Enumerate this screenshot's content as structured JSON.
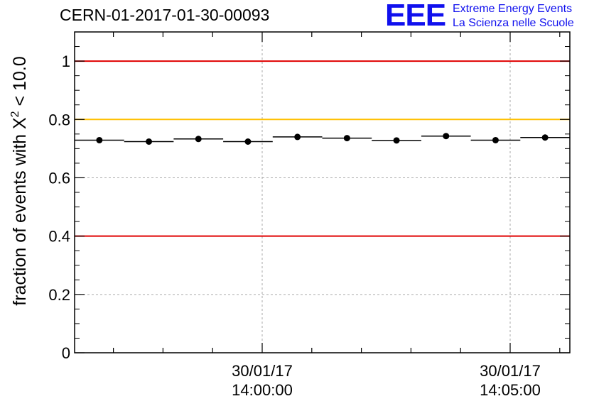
{
  "chart_data": {
    "type": "scatter",
    "title": "CERN-01-2017-01-30-00093",
    "ylabel_prefix": "fraction of events with ",
    "ylabel_symbol": "X",
    "ylabel_sup": "2",
    "ylabel_suffix": " < 10.0",
    "ylim": [
      0,
      1.1
    ],
    "y_ticks": [
      "0",
      "0.2",
      "0.4",
      "0.6",
      "0.8",
      "1"
    ],
    "x_labels": [
      {
        "date": "30/01/17",
        "time": "14:00:00"
      },
      {
        "date": "30/01/17",
        "time": "14:05:00"
      }
    ],
    "grid": true,
    "reference_lines": [
      {
        "y": 1.0,
        "color": "#e00000"
      },
      {
        "y": 0.8,
        "color": "#ffc000"
      },
      {
        "y": 0.4,
        "color": "#e00000"
      }
    ],
    "points": [
      0.729,
      0.724,
      0.733,
      0.724,
      0.74,
      0.736,
      0.728,
      0.743,
      0.729,
      0.738
    ]
  },
  "logo": {
    "mark": "EEE",
    "line1": "Extreme Energy Events",
    "line2": "La Scienza nelle Scuole"
  }
}
